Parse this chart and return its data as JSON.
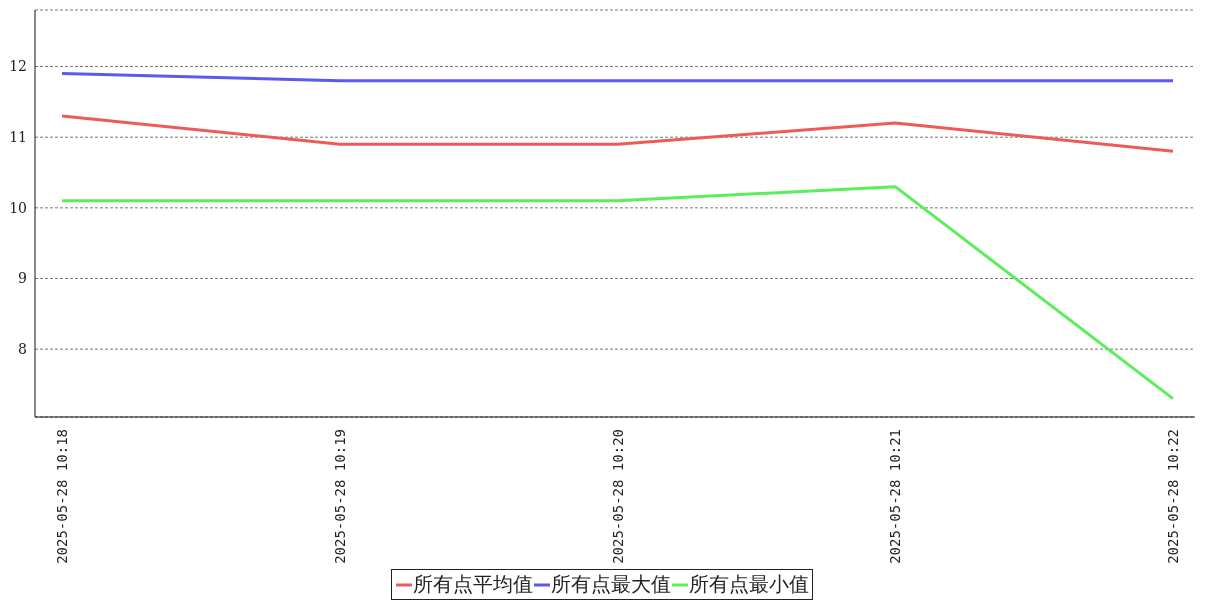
{
  "chart_data": {
    "type": "line",
    "categories": [
      "2025-05-28 10:18",
      "2025-05-28 10:19",
      "2025-05-28 10:20",
      "2025-05-28 10:21",
      "2025-05-28 10:22"
    ],
    "series": [
      {
        "name": "所有点平均值",
        "color": "#ee5a5a",
        "values": [
          11.3,
          10.9,
          10.9,
          11.2,
          10.8
        ]
      },
      {
        "name": "所有点最大值",
        "color": "#5a5aee",
        "values": [
          11.9,
          11.8,
          11.8,
          11.8,
          11.8
        ]
      },
      {
        "name": "所有点最小值",
        "color": "#5aee5a",
        "values": [
          10.1,
          10.1,
          10.1,
          10.3,
          7.3
        ]
      }
    ],
    "ylim": [
      7.04,
      12.8
    ],
    "yticks": [
      8,
      9,
      10,
      11,
      12
    ],
    "grid": "y",
    "legend": "bottom",
    "marker": "none",
    "line_style": "solid"
  }
}
